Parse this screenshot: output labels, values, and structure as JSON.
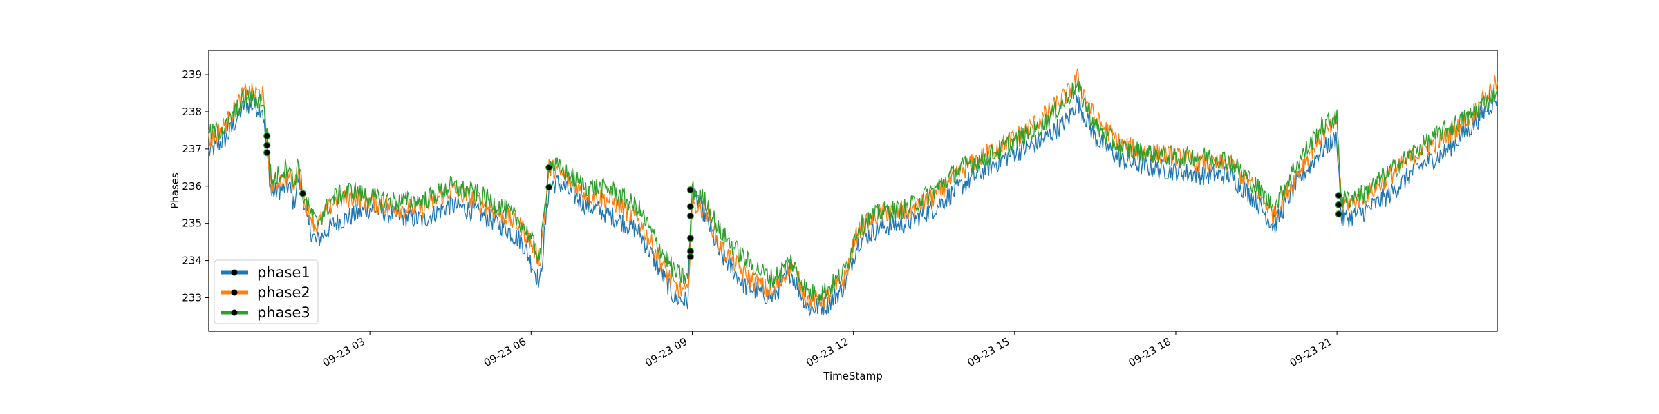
{
  "chart_data": {
    "type": "line",
    "title": "",
    "xlabel": "TimeStamp",
    "ylabel": "Phases",
    "ylim": [
      232.1,
      239.65
    ],
    "xlim": [
      "2019-09-23 00:00",
      "2019-09-23 23:59"
    ],
    "yticks": [
      233,
      234,
      235,
      236,
      237,
      238,
      239
    ],
    "xticks": [
      {
        "t": "2019-09-23 03:00",
        "label": "09-23 03"
      },
      {
        "t": "2019-09-23 06:00",
        "label": "09-23 06"
      },
      {
        "t": "2019-09-23 09:00",
        "label": "09-23 09"
      },
      {
        "t": "2019-09-23 12:00",
        "label": "09-23 12"
      },
      {
        "t": "2019-09-23 15:00",
        "label": "09-23 15"
      },
      {
        "t": "2019-09-23 18:00",
        "label": "09-23 18"
      },
      {
        "t": "2019-09-23 21:00",
        "label": "09-23 21"
      }
    ],
    "grid": false,
    "legend_position": "lower-left",
    "series": [
      {
        "name": "phase1",
        "color": "#1f77b4",
        "points": [
          [
            "2019-09-23 00:00",
            236.9
          ],
          [
            "2019-09-23 00:20",
            237.3
          ],
          [
            "2019-09-23 00:40",
            238.2
          ],
          [
            "2019-09-23 01:00",
            238.1
          ],
          [
            "2019-09-23 01:05",
            236.9
          ],
          [
            "2019-09-23 01:10",
            235.8
          ],
          [
            "2019-09-23 01:30",
            236.0
          ],
          [
            "2019-09-23 01:35",
            235.5
          ],
          [
            "2019-09-23 01:40",
            236.2
          ],
          [
            "2019-09-23 01:45",
            235.8
          ],
          [
            "2019-09-23 01:50",
            235.0
          ],
          [
            "2019-09-23 02:00",
            234.5
          ],
          [
            "2019-09-23 02:20",
            235.0
          ],
          [
            "2019-09-23 02:40",
            235.2
          ],
          [
            "2019-09-23 03:00",
            235.4
          ],
          [
            "2019-09-23 03:30",
            235.2
          ],
          [
            "2019-09-23 04:00",
            235.1
          ],
          [
            "2019-09-23 04:30",
            235.5
          ],
          [
            "2019-09-23 05:00",
            235.3
          ],
          [
            "2019-09-23 05:30",
            234.9
          ],
          [
            "2019-09-23 05:50",
            234.5
          ],
          [
            "2019-09-23 06:10",
            233.4
          ],
          [
            "2019-09-23 06:20",
            236.0
          ],
          [
            "2019-09-23 06:30",
            236.1
          ],
          [
            "2019-09-23 07:00",
            235.5
          ],
          [
            "2019-09-23 07:30",
            235.2
          ],
          [
            "2019-09-23 08:00",
            234.8
          ],
          [
            "2019-09-23 08:20",
            233.9
          ],
          [
            "2019-09-23 08:40",
            233.0
          ],
          [
            "2019-09-23 08:55",
            232.9
          ],
          [
            "2019-09-23 09:00",
            235.8
          ],
          [
            "2019-09-23 09:15",
            235.2
          ],
          [
            "2019-09-23 09:30",
            234.2
          ],
          [
            "2019-09-23 10:00",
            233.3
          ],
          [
            "2019-09-23 10:30",
            233.0
          ],
          [
            "2019-09-23 10:50",
            233.7
          ],
          [
            "2019-09-23 11:10",
            232.7
          ],
          [
            "2019-09-23 11:30",
            232.8
          ],
          [
            "2019-09-23 11:50",
            233.3
          ],
          [
            "2019-09-23 12:05",
            234.5
          ],
          [
            "2019-09-23 12:30",
            234.9
          ],
          [
            "2019-09-23 13:00",
            235.0
          ],
          [
            "2019-09-23 13:30",
            235.4
          ],
          [
            "2019-09-23 14:00",
            236.0
          ],
          [
            "2019-09-23 14:30",
            236.5
          ],
          [
            "2019-09-23 15:00",
            236.9
          ],
          [
            "2019-09-23 15:30",
            237.2
          ],
          [
            "2019-09-23 16:00",
            237.8
          ],
          [
            "2019-09-23 16:10",
            238.3
          ],
          [
            "2019-09-23 16:30",
            237.3
          ],
          [
            "2019-09-23 17:00",
            236.7
          ],
          [
            "2019-09-23 17:30",
            236.5
          ],
          [
            "2019-09-23 18:00",
            236.4
          ],
          [
            "2019-09-23 18:30",
            236.3
          ],
          [
            "2019-09-23 19:00",
            236.3
          ],
          [
            "2019-09-23 19:30",
            235.6
          ],
          [
            "2019-09-23 19:50",
            234.9
          ],
          [
            "2019-09-23 20:10",
            235.9
          ],
          [
            "2019-09-23 20:40",
            236.9
          ],
          [
            "2019-09-23 20:55",
            237.2
          ],
          [
            "2019-09-23 21:00",
            237.3
          ],
          [
            "2019-09-23 21:05",
            235.1
          ],
          [
            "2019-09-23 21:30",
            235.3
          ],
          [
            "2019-09-23 22:00",
            235.8
          ],
          [
            "2019-09-23 22:30",
            236.5
          ],
          [
            "2019-09-23 23:00",
            236.9
          ],
          [
            "2019-09-23 23:30",
            237.6
          ],
          [
            "2019-09-23 23:59",
            238.4
          ]
        ]
      },
      {
        "name": "phase2",
        "color": "#ff7f0e",
        "points": [
          [
            "2019-09-23 00:00",
            237.2
          ],
          [
            "2019-09-23 00:20",
            237.7
          ],
          [
            "2019-09-23 00:40",
            238.5
          ],
          [
            "2019-09-23 01:00",
            238.5
          ],
          [
            "2019-09-23 01:05",
            237.2
          ],
          [
            "2019-09-23 01:10",
            236.0
          ],
          [
            "2019-09-23 01:30",
            236.3
          ],
          [
            "2019-09-23 01:35",
            235.9
          ],
          [
            "2019-09-23 01:40",
            236.5
          ],
          [
            "2019-09-23 01:45",
            235.8
          ],
          [
            "2019-09-23 01:50",
            235.4
          ],
          [
            "2019-09-23 02:00",
            234.9
          ],
          [
            "2019-09-23 02:20",
            235.6
          ],
          [
            "2019-09-23 02:40",
            235.7
          ],
          [
            "2019-09-23 03:00",
            235.6
          ],
          [
            "2019-09-23 03:30",
            235.4
          ],
          [
            "2019-09-23 04:00",
            235.4
          ],
          [
            "2019-09-23 04:30",
            235.9
          ],
          [
            "2019-09-23 05:00",
            235.6
          ],
          [
            "2019-09-23 05:30",
            235.2
          ],
          [
            "2019-09-23 05:50",
            234.9
          ],
          [
            "2019-09-23 06:10",
            234.0
          ],
          [
            "2019-09-23 06:20",
            236.5
          ],
          [
            "2019-09-23 06:30",
            236.4
          ],
          [
            "2019-09-23 07:00",
            235.8
          ],
          [
            "2019-09-23 07:30",
            235.6
          ],
          [
            "2019-09-23 08:00",
            235.1
          ],
          [
            "2019-09-23 08:20",
            234.2
          ],
          [
            "2019-09-23 08:40",
            233.3
          ],
          [
            "2019-09-23 08:55",
            233.1
          ],
          [
            "2019-09-23 09:00",
            235.5
          ],
          [
            "2019-09-23 09:15",
            235.4
          ],
          [
            "2019-09-23 09:30",
            234.4
          ],
          [
            "2019-09-23 10:00",
            233.6
          ],
          [
            "2019-09-23 10:30",
            233.1
          ],
          [
            "2019-09-23 10:50",
            233.9
          ],
          [
            "2019-09-23 11:10",
            232.9
          ],
          [
            "2019-09-23 11:30",
            233.0
          ],
          [
            "2019-09-23 11:50",
            233.5
          ],
          [
            "2019-09-23 12:05",
            234.8
          ],
          [
            "2019-09-23 12:30",
            235.3
          ],
          [
            "2019-09-23 13:00",
            235.3
          ],
          [
            "2019-09-23 13:30",
            235.7
          ],
          [
            "2019-09-23 14:00",
            236.4
          ],
          [
            "2019-09-23 14:30",
            236.9
          ],
          [
            "2019-09-23 15:00",
            237.3
          ],
          [
            "2019-09-23 15:30",
            237.8
          ],
          [
            "2019-09-23 16:00",
            238.5
          ],
          [
            "2019-09-23 16:10",
            238.9
          ],
          [
            "2019-09-23 16:30",
            237.8
          ],
          [
            "2019-09-23 17:00",
            237.1
          ],
          [
            "2019-09-23 17:30",
            236.9
          ],
          [
            "2019-09-23 18:00",
            236.8
          ],
          [
            "2019-09-23 18:30",
            236.6
          ],
          [
            "2019-09-23 19:00",
            236.6
          ],
          [
            "2019-09-23 19:30",
            235.9
          ],
          [
            "2019-09-23 19:50",
            235.2
          ],
          [
            "2019-09-23 20:10",
            236.1
          ],
          [
            "2019-09-23 20:40",
            237.3
          ],
          [
            "2019-09-23 20:55",
            237.6
          ],
          [
            "2019-09-23 21:00",
            237.8
          ],
          [
            "2019-09-23 21:05",
            235.5
          ],
          [
            "2019-09-23 21:30",
            235.7
          ],
          [
            "2019-09-23 22:00",
            236.3
          ],
          [
            "2019-09-23 22:30",
            236.9
          ],
          [
            "2019-09-23 23:00",
            237.3
          ],
          [
            "2019-09-23 23:30",
            237.9
          ],
          [
            "2019-09-23 23:59",
            238.8
          ]
        ]
      },
      {
        "name": "phase3",
        "color": "#2ca02c",
        "points": [
          [
            "2019-09-23 00:00",
            237.4
          ],
          [
            "2019-09-23 00:20",
            237.6
          ],
          [
            "2019-09-23 00:40",
            238.4
          ],
          [
            "2019-09-23 01:00",
            238.3
          ],
          [
            "2019-09-23 01:05",
            237.4
          ],
          [
            "2019-09-23 01:10",
            236.1
          ],
          [
            "2019-09-23 01:30",
            236.6
          ],
          [
            "2019-09-23 01:35",
            236.0
          ],
          [
            "2019-09-23 01:40",
            236.7
          ],
          [
            "2019-09-23 01:45",
            235.8
          ],
          [
            "2019-09-23 01:50",
            235.5
          ],
          [
            "2019-09-23 02:00",
            235.0
          ],
          [
            "2019-09-23 02:20",
            235.7
          ],
          [
            "2019-09-23 02:40",
            235.9
          ],
          [
            "2019-09-23 03:00",
            235.7
          ],
          [
            "2019-09-23 03:30",
            235.6
          ],
          [
            "2019-09-23 04:00",
            235.6
          ],
          [
            "2019-09-23 04:30",
            236.0
          ],
          [
            "2019-09-23 05:00",
            235.8
          ],
          [
            "2019-09-23 05:30",
            235.4
          ],
          [
            "2019-09-23 05:50",
            235.0
          ],
          [
            "2019-09-23 06:10",
            234.1
          ],
          [
            "2019-09-23 06:20",
            236.6
          ],
          [
            "2019-09-23 06:30",
            236.5
          ],
          [
            "2019-09-23 07:00",
            236.0
          ],
          [
            "2019-09-23 07:30",
            235.9
          ],
          [
            "2019-09-23 08:00",
            235.4
          ],
          [
            "2019-09-23 08:20",
            234.5
          ],
          [
            "2019-09-23 08:40",
            233.7
          ],
          [
            "2019-09-23 08:55",
            233.5
          ],
          [
            "2019-09-23 09:00",
            235.9
          ],
          [
            "2019-09-23 09:15",
            235.6
          ],
          [
            "2019-09-23 09:30",
            234.8
          ],
          [
            "2019-09-23 10:00",
            234.0
          ],
          [
            "2019-09-23 10:30",
            233.5
          ],
          [
            "2019-09-23 10:50",
            234.0
          ],
          [
            "2019-09-23 11:10",
            233.1
          ],
          [
            "2019-09-23 11:30",
            233.2
          ],
          [
            "2019-09-23 11:50",
            233.7
          ],
          [
            "2019-09-23 12:05",
            234.9
          ],
          [
            "2019-09-23 12:30",
            235.3
          ],
          [
            "2019-09-23 13:00",
            235.4
          ],
          [
            "2019-09-23 13:30",
            235.9
          ],
          [
            "2019-09-23 14:00",
            236.5
          ],
          [
            "2019-09-23 14:30",
            236.8
          ],
          [
            "2019-09-23 15:00",
            237.2
          ],
          [
            "2019-09-23 15:30",
            237.6
          ],
          [
            "2019-09-23 16:00",
            238.4
          ],
          [
            "2019-09-23 16:10",
            238.7
          ],
          [
            "2019-09-23 16:30",
            237.6
          ],
          [
            "2019-09-23 17:00",
            237.0
          ],
          [
            "2019-09-23 17:30",
            236.9
          ],
          [
            "2019-09-23 18:00",
            236.8
          ],
          [
            "2019-09-23 18:30",
            236.8
          ],
          [
            "2019-09-23 19:00",
            236.7
          ],
          [
            "2019-09-23 19:30",
            236.0
          ],
          [
            "2019-09-23 19:50",
            235.4
          ],
          [
            "2019-09-23 20:10",
            236.4
          ],
          [
            "2019-09-23 20:40",
            237.5
          ],
          [
            "2019-09-23 20:55",
            237.8
          ],
          [
            "2019-09-23 21:00",
            237.8
          ],
          [
            "2019-09-23 21:05",
            235.6
          ],
          [
            "2019-09-23 21:30",
            235.8
          ],
          [
            "2019-09-23 22:00",
            236.4
          ],
          [
            "2019-09-23 22:30",
            237.0
          ],
          [
            "2019-09-23 23:00",
            237.5
          ],
          [
            "2019-09-23 23:30",
            237.9
          ],
          [
            "2019-09-23 23:59",
            238.6
          ]
        ]
      }
    ],
    "markers": [
      [
        "2019-09-23 01:05",
        237.35
      ],
      [
        "2019-09-23 01:05",
        237.1
      ],
      [
        "2019-09-23 01:05",
        236.9
      ],
      [
        "2019-09-23 01:45",
        235.8
      ],
      [
        "2019-09-23 06:20",
        236.5
      ],
      [
        "2019-09-23 06:20",
        235.97
      ],
      [
        "2019-09-23 08:58",
        235.9
      ],
      [
        "2019-09-23 08:58",
        235.45
      ],
      [
        "2019-09-23 08:58",
        235.2
      ],
      [
        "2019-09-23 08:58",
        234.6
      ],
      [
        "2019-09-23 08:58",
        234.25
      ],
      [
        "2019-09-23 08:58",
        234.1
      ],
      [
        "2019-09-23 21:02",
        235.75
      ],
      [
        "2019-09-23 21:02",
        235.5
      ],
      [
        "2019-09-23 21:02",
        235.25
      ]
    ]
  }
}
